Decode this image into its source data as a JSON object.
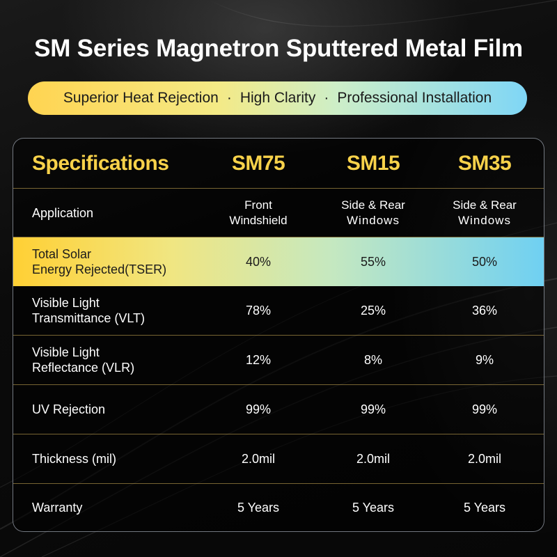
{
  "title": "SM Series Magnetron Sputtered Metal Film",
  "banner": {
    "item1": "Superior Heat Rejection",
    "sep1": "·",
    "item2": "High Clarity",
    "sep2": "·",
    "item3": "Professional Installation"
  },
  "colors": {
    "accent_gold": "#f8d24a",
    "gradient_yellow": "#ffd034",
    "gradient_blue": "#6fd0f2",
    "background": "#050505"
  },
  "table": {
    "header": {
      "label": "Specifications",
      "col1": "SM75",
      "col2": "SM15",
      "col3": "SM35"
    },
    "rows": [
      {
        "label": "Application",
        "v1a": "Front",
        "v1b": "Windshield",
        "v2a": "Side & Rear",
        "v2b": "Windows",
        "v3a": "Side & Rear",
        "v3b": "Windows"
      },
      {
        "label_a": "Total Solar",
        "label_b": "Energy Rejected(TSER)",
        "v1": "40%",
        "v2": "55%",
        "v3": "50%"
      },
      {
        "label_a": "Visible Light",
        "label_b": "Transmittance (VLT)",
        "v1": "78%",
        "v2": "25%",
        "v3": "36%"
      },
      {
        "label_a": "Visible Light",
        "label_b": "Reflectance (VLR)",
        "v1": "12%",
        "v2": "8%",
        "v3": "9%"
      },
      {
        "label": "UV Rejection",
        "v1": "99%",
        "v2": "99%",
        "v3": "99%"
      },
      {
        "label": "Thickness (mil)",
        "v1": "2.0mil",
        "v2": "2.0mil",
        "v3": "2.0mil"
      },
      {
        "label": "Warranty",
        "v1": "5 Years",
        "v2": "5 Years",
        "v3": "5 Years"
      }
    ]
  }
}
